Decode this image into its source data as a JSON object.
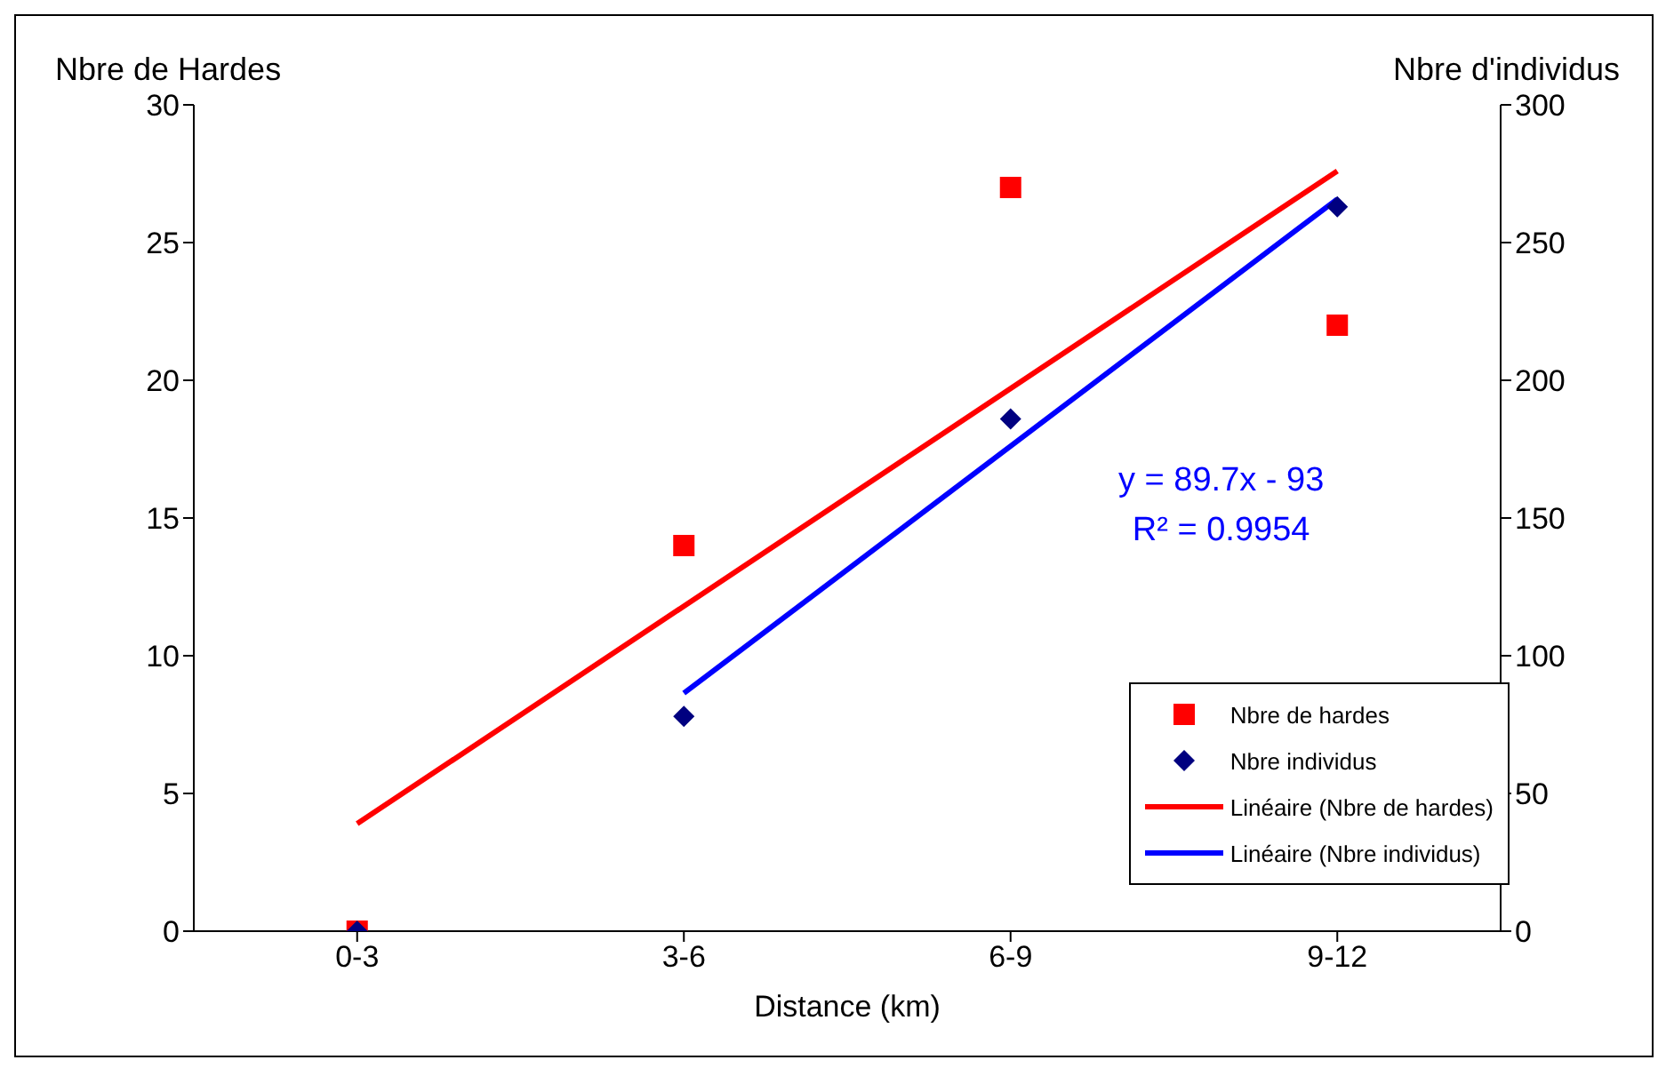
{
  "chart_data": {
    "type": "scatter",
    "xlabel": "Distance (km)",
    "ylabel": "Nbre de Hardes",
    "y2label": "Nbre d'individus",
    "categories": [
      "0-3",
      "3-6",
      "6-9",
      "9-12"
    ],
    "ylim": [
      0,
      30
    ],
    "yticks": [
      0,
      5,
      10,
      15,
      20,
      25,
      30
    ],
    "y2lim": [
      0,
      300
    ],
    "y2ticks": [
      0,
      50,
      100,
      150,
      200,
      250,
      300
    ],
    "grid": false,
    "legend": "bottom right",
    "annotations": [
      "y = 89.7x - 93",
      "R² = 0.9954"
    ],
    "series": [
      {
        "name": "Nbre de hardes",
        "marker": "square",
        "color": "#ff0000",
        "values": [
          0,
          14,
          27,
          22
        ]
      },
      {
        "name": "Nbre individus",
        "marker": "diamond",
        "color": "#000080",
        "axis": "y2",
        "values": [
          0,
          78,
          186,
          263
        ]
      },
      {
        "name": "Linéaire (Nbre de hardes)",
        "type": "line",
        "color": "#ff0000",
        "values": [
          3.9,
          11.8,
          19.7,
          27.6
        ]
      },
      {
        "name": "Linéaire (Nbre individus)",
        "type": "line",
        "color": "#0000ff",
        "axis": "y2",
        "values": [
          null,
          86.4,
          176.1,
          265.8
        ]
      }
    ]
  }
}
